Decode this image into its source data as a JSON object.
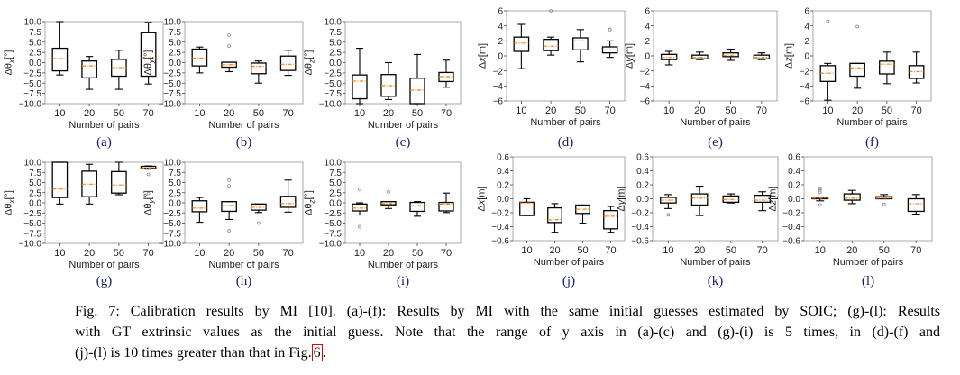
{
  "chart_data": [
    {
      "panel": "(a)",
      "type": "box",
      "xlabel": "Number of pairs",
      "ylabel": {
        "prefix": "Δθ",
        "sub": "x",
        "var": "",
        "suffix": "[°]"
      },
      "ylim": [
        -10,
        10
      ],
      "yticks": [
        "10.0",
        "7.5",
        "5.0",
        "2.5",
        "0.0",
        "−2.5",
        "−5.0",
        "−7.5",
        "−10.0"
      ],
      "categories": [
        "10",
        "20",
        "50",
        "70"
      ],
      "boxes": [
        [
          -3,
          -2,
          1,
          3.5,
          10,
          []
        ],
        [
          -6.5,
          -3.7,
          -0.8,
          0.4,
          1.5,
          []
        ],
        [
          -6.5,
          -3.3,
          -1.2,
          0.8,
          3,
          []
        ],
        [
          -5.2,
          -3.3,
          1.2,
          7.3,
          9.8,
          []
        ]
      ]
    },
    {
      "panel": "(b)",
      "type": "box",
      "xlabel": "Number of pairs",
      "ylabel": {
        "prefix": "Δθ",
        "sub": "y",
        "var": "",
        "suffix": "[°]"
      },
      "ylim": [
        -10,
        10
      ],
      "yticks": [
        "10.0",
        "7.5",
        "5.0",
        "2.5",
        "0.0",
        "−2.5",
        "−5.0",
        "−7.5",
        "−10.0"
      ],
      "categories": [
        "10",
        "20",
        "50",
        "70"
      ],
      "boxes": [
        [
          -2.5,
          -0.8,
          1.1,
          3.3,
          3.8,
          []
        ],
        [
          -2.2,
          -1.1,
          -0.5,
          0.1,
          0.1,
          [
            4,
            6.7
          ]
        ],
        [
          -5,
          -2.7,
          -0.9,
          -0.1,
          0.4,
          []
        ],
        [
          -3.1,
          -1.9,
          -0.4,
          1.6,
          3,
          []
        ]
      ]
    },
    {
      "panel": "(c)",
      "type": "box",
      "xlabel": "Number of pairs",
      "ylabel": {
        "prefix": "Δθ",
        "sub": "z",
        "var": "",
        "suffix": "[°]"
      },
      "ylim": [
        -10,
        10
      ],
      "yticks": [
        "10.0",
        "7.5",
        "5.0",
        "2.5",
        "0.0",
        "−2.5",
        "−5.0",
        "−7.5",
        "−10.0"
      ],
      "categories": [
        "10",
        "20",
        "50",
        "70"
      ],
      "boxes": [
        [
          -10,
          -8.8,
          -4.5,
          -3,
          3.5,
          []
        ],
        [
          -9,
          -8.2,
          -5.6,
          -2.9,
          0,
          []
        ],
        [
          -10,
          -10,
          -6.7,
          -3.8,
          2,
          []
        ],
        [
          -6,
          -4.6,
          -3.4,
          -2.4,
          0.6,
          []
        ]
      ]
    },
    {
      "panel": "(d)",
      "type": "box",
      "xlabel": "Number of pairs",
      "ylabel": {
        "prefix": "Δ",
        "sub": "",
        "var": "x",
        "suffix": "[m]"
      },
      "ylim": [
        -6,
        6
      ],
      "yticks": [
        "6",
        "4",
        "2",
        "0",
        "−2",
        "−4",
        "−6"
      ],
      "categories": [
        "10",
        "20",
        "50",
        "70"
      ],
      "boxes": [
        [
          -1.7,
          0.6,
          1.7,
          2.5,
          4.2,
          []
        ],
        [
          0.1,
          0.7,
          1.3,
          2.2,
          2.5,
          [
            6
          ]
        ],
        [
          -0.8,
          0.8,
          2,
          2.4,
          3.5,
          []
        ],
        [
          -0.2,
          0.4,
          0.8,
          1.2,
          2,
          [
            3.5
          ]
        ]
      ]
    },
    {
      "panel": "(e)",
      "type": "box",
      "xlabel": "Number of pairs",
      "ylabel": {
        "prefix": "Δ",
        "sub": "",
        "var": "y",
        "suffix": "[m]"
      },
      "ylim": [
        -6,
        6
      ],
      "yticks": [
        "6",
        "4",
        "2",
        "0",
        "−2",
        "−4",
        "−6"
      ],
      "categories": [
        "10",
        "20",
        "50",
        "70"
      ],
      "boxes": [
        [
          -1.2,
          -0.5,
          -0.2,
          0.2,
          0.6,
          []
        ],
        [
          -0.5,
          -0.4,
          -0.2,
          0.1,
          0.5,
          []
        ],
        [
          -0.6,
          -0.1,
          0.1,
          0.4,
          0.9,
          []
        ],
        [
          -0.5,
          -0.4,
          -0.2,
          0.1,
          0.4,
          []
        ]
      ]
    },
    {
      "panel": "(f)",
      "type": "box",
      "xlabel": "Number of pairs",
      "ylabel": {
        "prefix": "Δ",
        "sub": "",
        "var": "z",
        "suffix": "[m]"
      },
      "ylim": [
        -6,
        6
      ],
      "yticks": [
        "6",
        "4",
        "2",
        "0",
        "−2",
        "−4",
        "−6"
      ],
      "categories": [
        "10",
        "20",
        "50",
        "70"
      ],
      "boxes": [
        [
          -5.9,
          -3.4,
          -2.3,
          -1.3,
          -1,
          [
            4.6
          ]
        ],
        [
          -4.3,
          -2.7,
          -1.6,
          -1,
          -1,
          [
            3.9
          ]
        ],
        [
          -3.7,
          -2.4,
          -1.1,
          -0.7,
          0.5,
          []
        ],
        [
          -3.6,
          -3,
          -2.1,
          -1.3,
          0.5,
          []
        ]
      ]
    },
    {
      "panel": "(g)",
      "type": "box",
      "xlabel": "Number of pairs",
      "ylabel": {
        "prefix": "Δθ",
        "sub": "x",
        "var": "",
        "suffix": "[°]"
      },
      "ylim": [
        -10,
        10
      ],
      "yticks": [
        "10.0",
        "7.5",
        "5.0",
        "2.5",
        "0.0",
        "−2.5",
        "−5.0",
        "−7.5",
        "−10.0"
      ],
      "categories": [
        "10",
        "20",
        "50",
        "70"
      ],
      "boxes": [
        [
          -0.3,
          1.3,
          3.4,
          10,
          10,
          []
        ],
        [
          -0.3,
          1.5,
          4.6,
          7.8,
          9.5,
          []
        ],
        [
          2,
          2.4,
          4.4,
          7.7,
          10,
          []
        ],
        [
          8.3,
          8.5,
          8.6,
          9,
          9.1,
          [
            7,
            2.3
          ]
        ]
      ]
    },
    {
      "panel": "(h)",
      "type": "box",
      "xlabel": "Number of pairs",
      "ylabel": {
        "prefix": "Δθ",
        "sub": "y",
        "var": "",
        "suffix": "[°]"
      },
      "ylim": [
        -10,
        10
      ],
      "yticks": [
        "10.0",
        "7.5",
        "5.0",
        "2.5",
        "0.0",
        "−2.5",
        "−5.0",
        "−7.5",
        "−10.0"
      ],
      "categories": [
        "10",
        "20",
        "50",
        "70"
      ],
      "boxes": [
        [
          -4.8,
          -2.2,
          -1.3,
          0.5,
          1.3,
          []
        ],
        [
          -4.1,
          -2.1,
          -0.7,
          0.3,
          0.3,
          [
            4.2,
            5.6,
            -6.9
          ]
        ],
        [
          -2.4,
          -1.8,
          -1.1,
          -0.3,
          -0.3,
          [
            -5
          ]
        ],
        [
          -2.3,
          -1.1,
          -0.2,
          1.6,
          5.6,
          []
        ]
      ]
    },
    {
      "panel": "(i)",
      "type": "box",
      "xlabel": "Number of pairs",
      "ylabel": {
        "prefix": "Δθ",
        "sub": "z",
        "var": "",
        "suffix": "[°]"
      },
      "ylim": [
        -10,
        10
      ],
      "yticks": [
        "10.0",
        "7.5",
        "5.0",
        "2.5",
        "0.0",
        "−2.5",
        "−5.0",
        "−7.5",
        "−10.0"
      ],
      "categories": [
        "10",
        "20",
        "50",
        "70"
      ],
      "boxes": [
        [
          -3,
          -2,
          -1.3,
          -0.3,
          0,
          [
            3.4,
            -5.9
          ]
        ],
        [
          -1.4,
          -0.5,
          -0.2,
          0.3,
          0.3,
          [
            2.7
          ]
        ],
        [
          -3.3,
          -2.1,
          -0.7,
          0.1,
          0.3,
          []
        ],
        [
          -2.4,
          -2,
          -0.3,
          0.1,
          2.4,
          []
        ]
      ]
    },
    {
      "panel": "(j)",
      "type": "box",
      "xlabel": "Number of pairs",
      "ylabel": {
        "prefix": "Δ",
        "sub": "",
        "var": "x",
        "suffix": "[m]"
      },
      "ylim": [
        -0.6,
        0.6
      ],
      "yticks": [
        "0.6",
        "0.4",
        "0.2",
        "0.0",
        "−0.2",
        "−0.4",
        "−0.6"
      ],
      "categories": [
        "10",
        "20",
        "50",
        "70"
      ],
      "boxes": [
        [
          -0.24,
          -0.24,
          -0.06,
          -0.05,
          0,
          []
        ],
        [
          -0.48,
          -0.34,
          -0.3,
          -0.13,
          -0.07,
          []
        ],
        [
          -0.35,
          -0.21,
          -0.15,
          -0.09,
          -0.09,
          []
        ],
        [
          -0.48,
          -0.43,
          -0.25,
          -0.17,
          -0.11,
          []
        ]
      ]
    },
    {
      "panel": "(k)",
      "type": "box",
      "xlabel": "Number of pairs",
      "ylabel": {
        "prefix": "Δ",
        "sub": "",
        "var": "y",
        "suffix": "[m]"
      },
      "ylim": [
        -0.6,
        0.6
      ],
      "yticks": [
        "0.6",
        "0.4",
        "0.2",
        "0.0",
        "−0.2",
        "−0.4",
        "−0.6"
      ],
      "categories": [
        "10",
        "20",
        "50",
        "70"
      ],
      "boxes": [
        [
          -0.14,
          -0.06,
          -0.02,
          0.02,
          0.06,
          [
            -0.23
          ]
        ],
        [
          -0.24,
          -0.09,
          0.01,
          0.07,
          0.18,
          []
        ],
        [
          -0.06,
          -0.05,
          -0.01,
          0.04,
          0.07,
          []
        ],
        [
          -0.17,
          -0.05,
          -0.02,
          0.05,
          0.1,
          []
        ]
      ]
    },
    {
      "panel": "(l)",
      "type": "box",
      "xlabel": "Number of pairs",
      "ylabel": {
        "prefix": "Δ",
        "sub": "",
        "var": "z",
        "suffix": "[m]"
      },
      "ylim": [
        -0.6,
        0.6
      ],
      "yticks": [
        "0.6",
        "0.4",
        "0.2",
        "0.0",
        "−0.2",
        "−0.4",
        "−0.6"
      ],
      "categories": [
        "10",
        "20",
        "50",
        "70"
      ],
      "boxes": [
        [
          -0.03,
          0,
          0.01,
          0.02,
          0.02,
          [
            0.09,
            0.13,
            0.15,
            -0.09
          ]
        ],
        [
          -0.07,
          -0.02,
          0.01,
          0.07,
          0.12,
          []
        ],
        [
          0,
          0,
          0.01,
          0.03,
          0.06,
          [
            -0.08
          ]
        ],
        [
          -0.22,
          -0.18,
          -0.07,
          0,
          0.06,
          []
        ]
      ]
    }
  ],
  "colors": {
    "median": "#ff7f0e",
    "box": "#000000",
    "frame": "#aaaaaa",
    "flier": "#888888",
    "subfig_label": "#1a1a6e",
    "ref_box": "#ee0000"
  },
  "caption": {
    "line1": "Fig. 7: Calibration results by MI [10]. (a)-(f): Results by MI with the same initial guesses estimated by SOIC; (g)-(l): Results",
    "line2": "with GT extrinsic values as the initial guess. Note that the range of y axis in (a)-(c) and (g)-(i) is 5 times, in (d)-(f) and",
    "line3": "(j)-(l) is 10 times greater than that in Fig.",
    "ref": "6",
    "end": "."
  }
}
